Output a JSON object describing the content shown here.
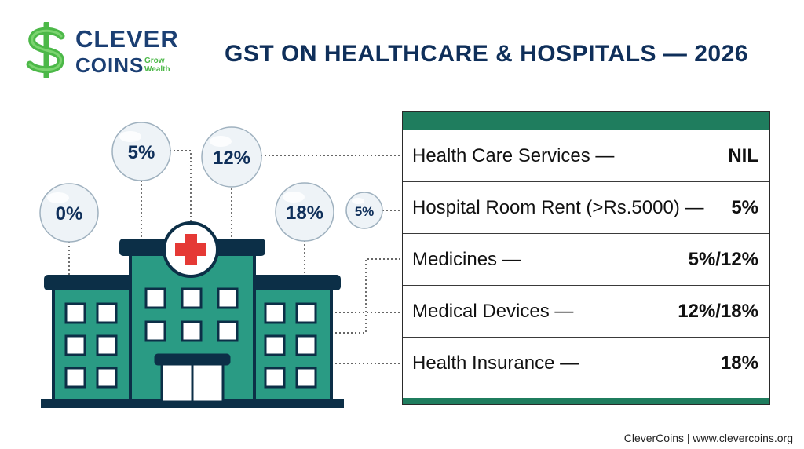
{
  "brand": {
    "word1": "CLEVER",
    "word2": "COINS",
    "tagline_1": "Grow",
    "tagline_2": "Wealth",
    "logo_icon": "dollar-sign-icon",
    "accent_color": "#4cb848",
    "text_color": "#1b3f73"
  },
  "title": "GST ON HEALTHCARE & HOSPITALS — 2026",
  "bubbles": {
    "b0": "0%",
    "b5": "5%",
    "b12": "12%",
    "b18": "18%",
    "b5_small": "5%"
  },
  "rates": [
    {
      "label": "Health Care Services —",
      "value": "NIL"
    },
    {
      "label": "Hospital Room Rent (>Rs.5000) —",
      "value": "5%"
    },
    {
      "label": "Medicines —",
      "value": "5%/12%"
    },
    {
      "label": "Medical Devices —",
      "value": "12%/18%"
    },
    {
      "label": "Health Insurance —",
      "value": "18%"
    }
  ],
  "illustration": {
    "icon": "hospital-building-icon",
    "cross_icon": "red-cross-icon"
  },
  "colors": {
    "building": "#2a9b84",
    "outline": "#0c2f47",
    "table_band": "#1f7d5e",
    "cross": "#e53935"
  },
  "footer": "CleverCoins | www.clevercoins.org"
}
